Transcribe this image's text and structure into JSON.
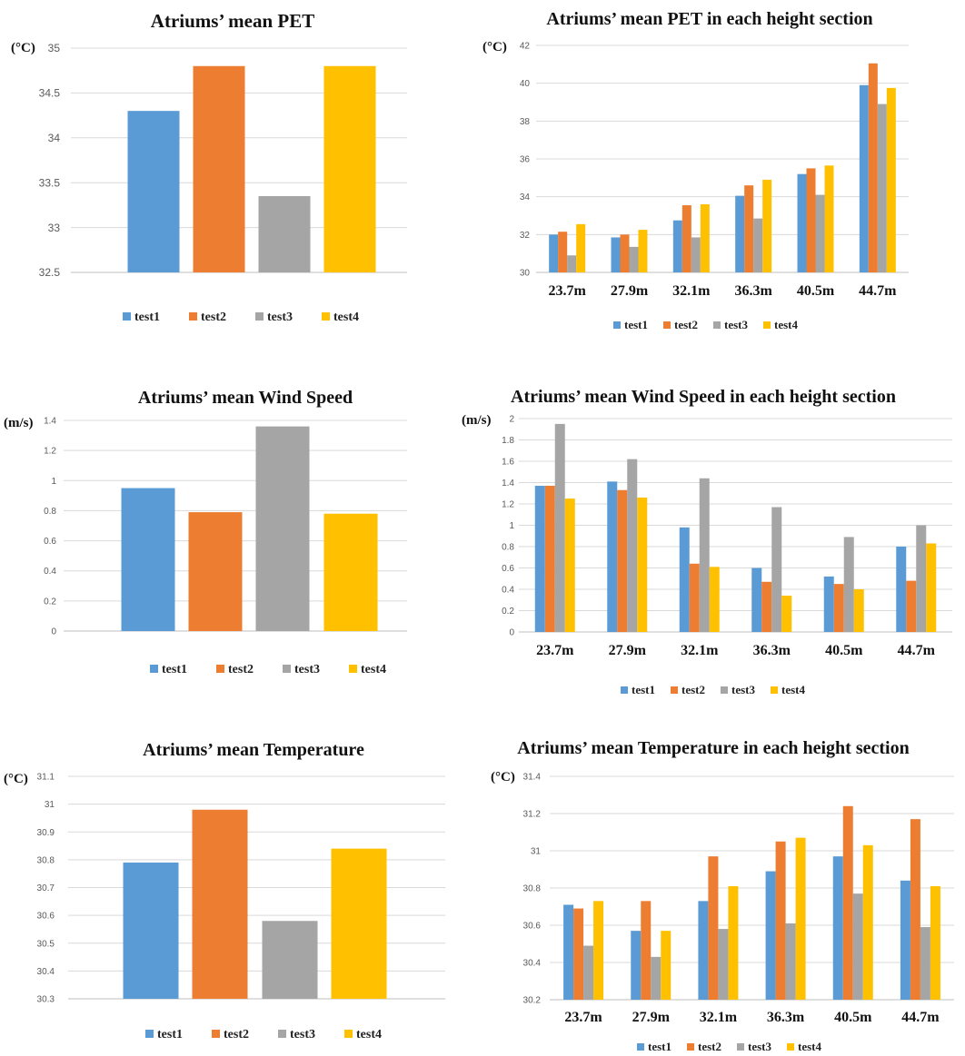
{
  "series_colors": {
    "test1": "#5b9bd5",
    "test2": "#ed7d31",
    "test3": "#a5a5a5",
    "test4": "#ffc000"
  },
  "legend": [
    "test1",
    "test2",
    "test3",
    "test4"
  ],
  "chart_data": [
    {
      "type": "bar",
      "title": "Atriums’ mean PET",
      "ylabel": "(°C)",
      "categories": [
        "test1",
        "test2",
        "test3",
        "test4"
      ],
      "values": [
        34.3,
        34.8,
        33.35,
        34.8
      ],
      "ylim": [
        32.5,
        35
      ],
      "yticks": [
        "35",
        "34.5",
        "34",
        "33.5",
        "33",
        "32.5"
      ],
      "grid": true,
      "legend_position": "bottom"
    },
    {
      "type": "bar",
      "title": "Atriums’ mean PET in each height section",
      "ylabel": "(°C)",
      "categories": [
        "23.7m",
        "27.9m",
        "32.1m",
        "36.3m",
        "40.5m",
        "44.7m"
      ],
      "series": [
        {
          "name": "test1",
          "values": [
            32.0,
            31.85,
            32.75,
            34.05,
            35.2,
            39.9
          ]
        },
        {
          "name": "test2",
          "values": [
            32.15,
            32.0,
            33.55,
            34.6,
            35.5,
            41.05
          ]
        },
        {
          "name": "test3",
          "values": [
            30.9,
            31.35,
            31.85,
            32.85,
            34.1,
            38.9
          ]
        },
        {
          "name": "test4",
          "values": [
            32.55,
            32.25,
            33.6,
            34.9,
            35.65,
            39.75
          ]
        }
      ],
      "ylim": [
        30,
        42
      ],
      "yticks": [
        "42",
        "40",
        "38",
        "36",
        "34",
        "32",
        "30"
      ],
      "grid": true,
      "legend_position": "bottom"
    },
    {
      "type": "bar",
      "title": "Atriums’ mean Wind Speed",
      "ylabel": "(m/s)",
      "categories": [
        "test1",
        "test2",
        "test3",
        "test4"
      ],
      "values": [
        0.95,
        0.79,
        1.36,
        0.78
      ],
      "ylim": [
        0,
        1.4
      ],
      "yticks": [
        "1.4",
        "1.2",
        "1",
        "0.8",
        "0.6",
        "0.4",
        "0.2",
        "0"
      ],
      "grid": true,
      "legend_position": "bottom"
    },
    {
      "type": "bar",
      "title": "Atriums’ mean Wind Speed in each height section",
      "ylabel": "(m/s)",
      "categories": [
        "23.7m",
        "27.9m",
        "32.1m",
        "36.3m",
        "40.5m",
        "44.7m"
      ],
      "series": [
        {
          "name": "test1",
          "values": [
            1.37,
            1.41,
            0.98,
            0.6,
            0.52,
            0.8
          ]
        },
        {
          "name": "test2",
          "values": [
            1.37,
            1.33,
            0.64,
            0.47,
            0.45,
            0.48
          ]
        },
        {
          "name": "test3",
          "values": [
            1.95,
            1.62,
            1.44,
            1.17,
            0.89,
            1.0
          ]
        },
        {
          "name": "test4",
          "values": [
            1.25,
            1.26,
            0.61,
            0.34,
            0.4,
            0.83
          ]
        }
      ],
      "ylim": [
        0,
        2
      ],
      "yticks": [
        "2",
        "1.8",
        "1.6",
        "1.4",
        "1.2",
        "1",
        "0.8",
        "0.6",
        "0.4",
        "0.2",
        "0"
      ],
      "grid": true,
      "legend_position": "bottom"
    },
    {
      "type": "bar",
      "title": "Atriums’ mean Temperature",
      "ylabel": "(°C)",
      "categories": [
        "test1",
        "test2",
        "test3",
        "test4"
      ],
      "values": [
        30.79,
        30.98,
        30.58,
        30.84
      ],
      "ylim": [
        30.3,
        31.1
      ],
      "yticks": [
        "31.1",
        "31",
        "30.9",
        "30.8",
        "30.7",
        "30.6",
        "30.5",
        "30.4",
        "30.3"
      ],
      "grid": true,
      "legend_position": "bottom"
    },
    {
      "type": "bar",
      "title": "Atriums’ mean Temperature in each height section",
      "ylabel": "(°C)",
      "categories": [
        "23.7m",
        "27.9m",
        "32.1m",
        "36.3m",
        "40.5m",
        "44.7m"
      ],
      "series": [
        {
          "name": "test1",
          "values": [
            30.71,
            30.57,
            30.73,
            30.89,
            30.97,
            30.84
          ]
        },
        {
          "name": "test2",
          "values": [
            30.69,
            30.73,
            30.97,
            31.05,
            31.24,
            31.17
          ]
        },
        {
          "name": "test3",
          "values": [
            30.49,
            30.43,
            30.58,
            30.61,
            30.77,
            30.59
          ]
        },
        {
          "name": "test4",
          "values": [
            30.73,
            30.57,
            30.81,
            31.07,
            31.03,
            30.81
          ]
        }
      ],
      "ylim": [
        30.2,
        31.4
      ],
      "yticks": [
        "31.4",
        "31.2",
        "31",
        "30.8",
        "30.6",
        "30.4",
        "30.2"
      ],
      "grid": true,
      "legend_position": "bottom"
    }
  ]
}
